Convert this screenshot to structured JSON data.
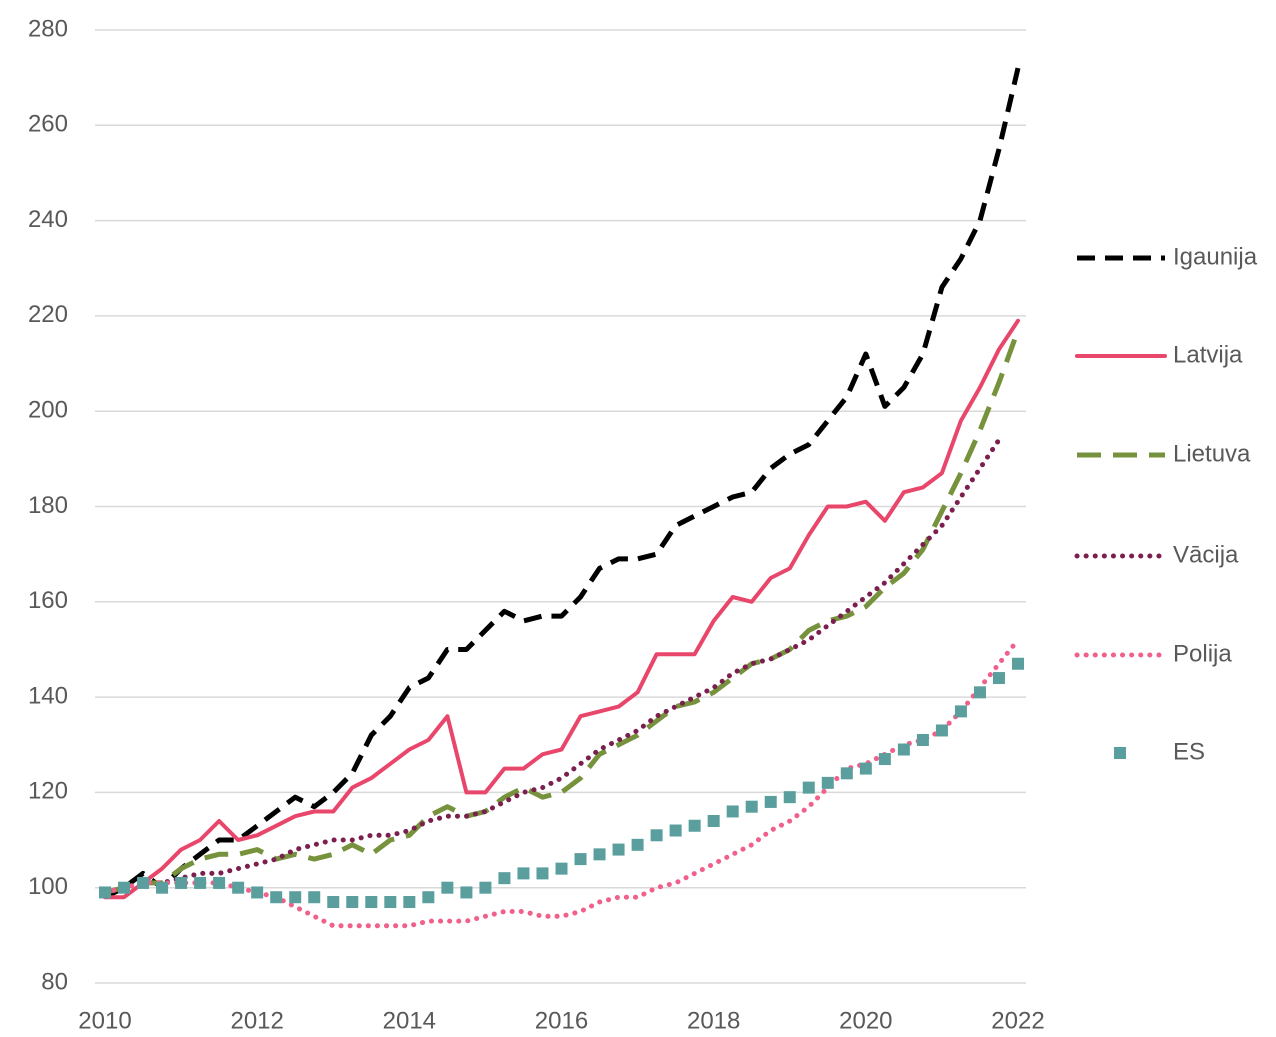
{
  "chart_data": {
    "type": "line",
    "x": [
      2010,
      2010.25,
      2010.5,
      2010.75,
      2011,
      2011.25,
      2011.5,
      2011.75,
      2012,
      2012.25,
      2012.5,
      2012.75,
      2013,
      2013.25,
      2013.5,
      2013.75,
      2014,
      2014.25,
      2014.5,
      2014.75,
      2015,
      2015.25,
      2015.5,
      2015.75,
      2016,
      2016.25,
      2016.5,
      2016.75,
      2017,
      2017.25,
      2017.5,
      2017.75,
      2018,
      2018.25,
      2018.5,
      2018.75,
      2019,
      2019.25,
      2019.5,
      2019.75,
      2020,
      2020.25,
      2020.5,
      2020.75,
      2021,
      2021.25,
      2021.5,
      2021.75,
      2022
    ],
    "series": [
      {
        "name": "Igaunija",
        "color": "#000000",
        "line_style": "dashed",
        "values": [
          98,
          100,
          103,
          100,
          104,
          107,
          110,
          110,
          113,
          116,
          119,
          117,
          120,
          124,
          132,
          136,
          142,
          144,
          150,
          150,
          154,
          158,
          156,
          157,
          157,
          161,
          167,
          169,
          169,
          170,
          176,
          178,
          180,
          182,
          183,
          188,
          191,
          193,
          198,
          203,
          212,
          201,
          205,
          212,
          226,
          232,
          240,
          255,
          272
        ]
      },
      {
        "name": "Latvija",
        "color": "#e8476b",
        "line_style": "solid",
        "values": [
          98,
          98,
          101,
          104,
          108,
          110,
          114,
          110,
          111,
          113,
          115,
          116,
          116,
          121,
          123,
          126,
          129,
          131,
          136,
          120,
          120,
          125,
          125,
          128,
          129,
          136,
          137,
          138,
          141,
          149,
          149,
          149,
          156,
          161,
          160,
          165,
          167,
          174,
          180,
          180,
          181,
          177,
          183,
          184,
          187,
          198,
          205,
          213,
          219
        ]
      },
      {
        "name": "Lietuva",
        "color": "#76923c",
        "line_style": "longdash",
        "values": [
          99,
          100,
          101,
          101,
          104,
          106,
          107,
          107,
          108,
          106,
          107,
          106,
          107,
          109,
          107,
          110,
          111,
          115,
          117,
          115,
          116,
          119,
          121,
          119,
          120,
          123,
          128,
          130,
          132,
          135,
          138,
          139,
          141,
          144,
          147,
          148,
          150,
          154,
          156,
          157,
          159,
          163,
          166,
          171,
          179,
          187,
          196,
          206,
          217
        ]
      },
      {
        "name": "Vācija",
        "color": "#7b1f4f",
        "line_style": "dotted",
        "values": [
          99,
          100,
          101,
          101,
          102,
          103,
          103,
          104,
          105,
          106,
          108,
          109,
          110,
          110,
          111,
          111,
          112,
          114,
          115,
          115,
          116,
          118,
          120,
          121,
          123,
          126,
          129,
          131,
          133,
          136,
          138,
          140,
          142,
          145,
          147,
          148,
          150,
          152,
          155,
          158,
          161,
          164,
          168,
          172,
          176,
          182,
          188,
          194,
          null
        ]
      },
      {
        "name": "Polija",
        "color": "#f0608a",
        "line_style": "dotted",
        "values": [
          99,
          100,
          101,
          101,
          101,
          101,
          101,
          100,
          99,
          98,
          96,
          94,
          92,
          92,
          92,
          92,
          92,
          93,
          93,
          93,
          94,
          95,
          95,
          94,
          94,
          95,
          97,
          98,
          98,
          100,
          101,
          103,
          105,
          107,
          109,
          112,
          114,
          117,
          121,
          125,
          126,
          128,
          130,
          131,
          133,
          137,
          142,
          147,
          152
        ]
      },
      {
        "name": "ES",
        "color": "#5b9e9e",
        "line_style": "markers",
        "values": [
          99,
          100,
          101,
          100,
          101,
          101,
          101,
          100,
          99,
          98,
          98,
          98,
          97,
          97,
          97,
          97,
          97,
          98,
          100,
          99,
          100,
          102,
          103,
          103,
          104,
          106,
          107,
          108,
          109,
          111,
          112,
          113,
          114,
          116,
          117,
          118,
          119,
          121,
          122,
          124,
          125,
          127,
          129,
          131,
          133,
          137,
          141,
          144,
          147
        ]
      }
    ],
    "xlim": [
      2010,
      2022
    ],
    "xticks": [
      2010,
      2012,
      2014,
      2016,
      2018,
      2020,
      2022
    ],
    "ylim": [
      80,
      280
    ],
    "yticks": [
      80,
      100,
      120,
      140,
      160,
      180,
      200,
      220,
      240,
      260,
      280
    ],
    "grid": true,
    "legend": "right"
  }
}
